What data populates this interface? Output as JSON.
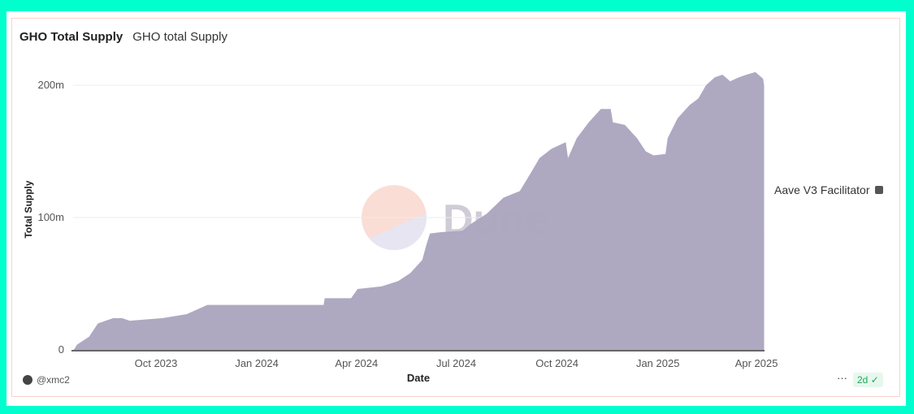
{
  "header": {
    "title": "GHO Total Supply",
    "subtitle": "GHO total Supply"
  },
  "footer": {
    "author": "@xmc2",
    "more": "···",
    "freshness": "2d",
    "freshness_icon": "check-circle-icon"
  },
  "watermark": "Dune",
  "colors": {
    "area": "#aba6bf",
    "frame": "#00ffcc"
  },
  "chart_data": {
    "type": "area",
    "title": "GHO Total Supply",
    "xlabel": "Date",
    "ylabel": "Total Supply",
    "ylim": [
      0,
      200000000
    ],
    "yticks": [
      {
        "v": 0,
        "label": "0"
      },
      {
        "v": 100000000,
        "label": "100m"
      },
      {
        "v": 200000000,
        "label": "200m"
      }
    ],
    "xticks": [
      {
        "d": "2023-10-01",
        "label": "Oct 2023"
      },
      {
        "d": "2024-01-01",
        "label": "Jan 2024"
      },
      {
        "d": "2024-04-01",
        "label": "Apr 2024"
      },
      {
        "d": "2024-07-01",
        "label": "Jul 2024"
      },
      {
        "d": "2024-10-01",
        "label": "Oct 2024"
      },
      {
        "d": "2025-01-01",
        "label": "Jan 2025"
      },
      {
        "d": "2025-04-01",
        "label": "Apr 2025"
      }
    ],
    "grid": true,
    "legend_position": "right",
    "series": [
      {
        "name": "Aave V3 Facilitator",
        "points": [
          [
            "2023-07-18",
            0
          ],
          [
            "2023-07-21",
            4
          ],
          [
            "2023-08-01",
            10
          ],
          [
            "2023-08-09",
            20
          ],
          [
            "2023-08-23",
            24
          ],
          [
            "2023-08-31",
            24
          ],
          [
            "2023-09-07",
            22
          ],
          [
            "2023-10-07",
            24
          ],
          [
            "2023-10-29",
            27
          ],
          [
            "2023-11-17",
            34
          ],
          [
            "2023-11-28",
            34
          ],
          [
            "2024-03-02",
            34
          ],
          [
            "2024-03-03",
            39
          ],
          [
            "2024-03-27",
            39
          ],
          [
            "2024-04-02",
            46
          ],
          [
            "2024-04-24",
            48
          ],
          [
            "2024-05-09",
            52
          ],
          [
            "2024-05-20",
            58
          ],
          [
            "2024-05-31",
            68
          ],
          [
            "2024-06-04",
            80
          ],
          [
            "2024-06-07",
            88
          ],
          [
            "2024-06-18",
            89
          ],
          [
            "2024-07-07",
            90
          ],
          [
            "2024-07-14",
            95
          ],
          [
            "2024-07-29",
            103
          ],
          [
            "2024-08-13",
            115
          ],
          [
            "2024-08-28",
            120
          ],
          [
            "2024-09-08",
            135
          ],
          [
            "2024-09-15",
            145
          ],
          [
            "2024-09-26",
            152
          ],
          [
            "2024-10-09",
            157
          ],
          [
            "2024-10-11",
            145
          ],
          [
            "2024-10-19",
            160
          ],
          [
            "2024-10-30",
            172
          ],
          [
            "2024-11-10",
            182
          ],
          [
            "2024-11-19",
            182
          ],
          [
            "2024-11-21",
            172
          ],
          [
            "2024-12-02",
            170
          ],
          [
            "2024-12-13",
            160
          ],
          [
            "2024-12-21",
            150
          ],
          [
            "2024-12-28",
            147
          ],
          [
            "2025-01-08",
            148
          ],
          [
            "2025-01-10",
            160
          ],
          [
            "2025-01-19",
            175
          ],
          [
            "2025-01-30",
            185
          ],
          [
            "2025-02-07",
            190
          ],
          [
            "2025-02-14",
            200
          ],
          [
            "2025-02-22",
            206
          ],
          [
            "2025-03-01",
            208
          ],
          [
            "2025-03-08",
            203
          ],
          [
            "2025-03-16",
            206
          ],
          [
            "2025-03-23",
            208
          ],
          [
            "2025-03-31",
            210
          ],
          [
            "2025-04-07",
            205
          ],
          [
            "2025-04-08",
            200
          ]
        ],
        "unit": "m"
      }
    ]
  }
}
